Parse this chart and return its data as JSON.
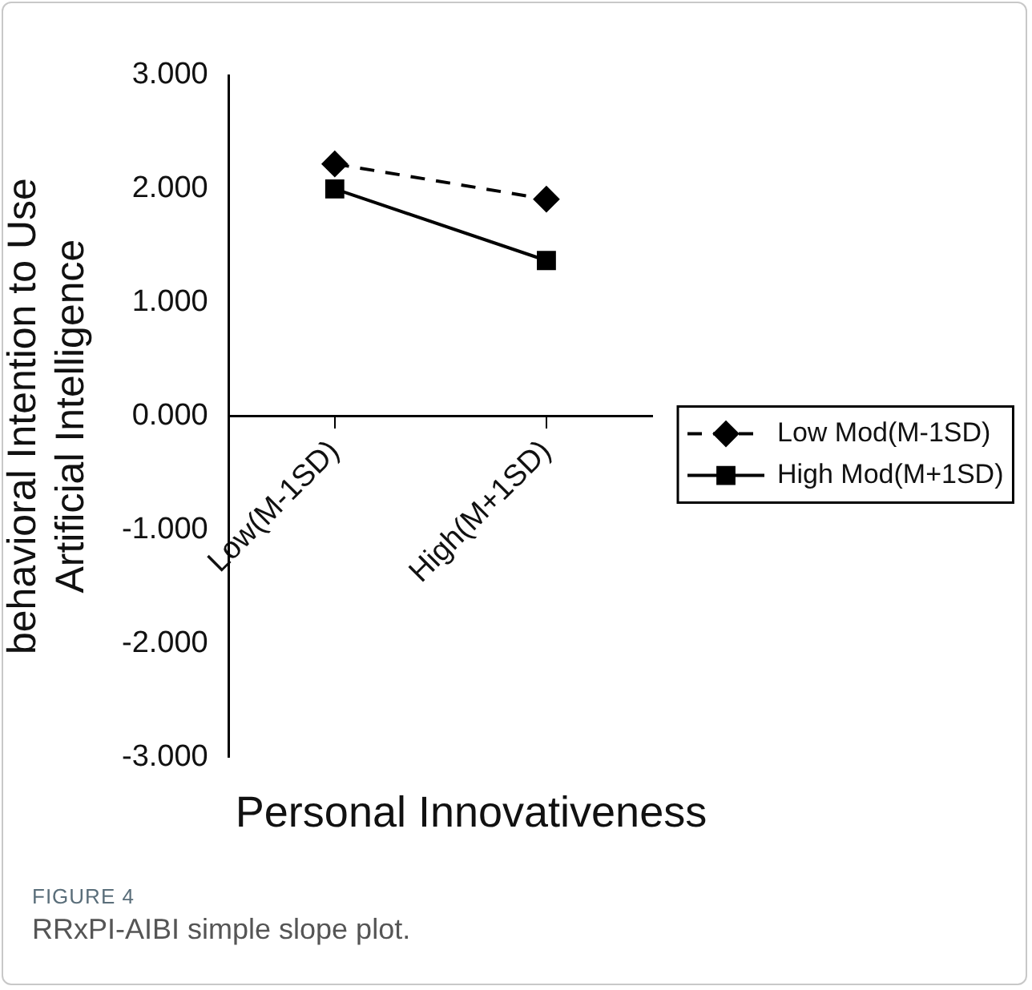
{
  "chart_data": {
    "type": "line",
    "xlabel": "Personal Innovativeness",
    "ylabel": "behavioral Intention to Use\nArtificial Intelligence",
    "categories": [
      "Low(M-1SD)",
      "High(M+1SD)"
    ],
    "series": [
      {
        "name": "Low Mod(M-1SD)",
        "color": "#000000",
        "values": [
          2.22,
          1.91
        ],
        "marker": "diamond",
        "line_style": "dashed"
      },
      {
        "name": "High Mod(M+1SD)",
        "color": "#000000",
        "values": [
          2.0,
          1.37
        ],
        "marker": "square",
        "line_style": "solid"
      }
    ],
    "ylim": [
      -3,
      3
    ],
    "yticks": [
      {
        "value": -3,
        "label": "-3.000"
      },
      {
        "value": -2,
        "label": "-2.000"
      },
      {
        "value": -1,
        "label": "-1.000"
      },
      {
        "value": 0,
        "label": "0.000"
      },
      {
        "value": 1,
        "label": "1.000"
      },
      {
        "value": 2,
        "label": "2.000"
      },
      {
        "value": 3,
        "label": "3.000"
      }
    ],
    "grid": false,
    "legend": "right",
    "annotations": [
      "FIGURE 4",
      "RRxPI-AIBI simple slope plot."
    ]
  }
}
